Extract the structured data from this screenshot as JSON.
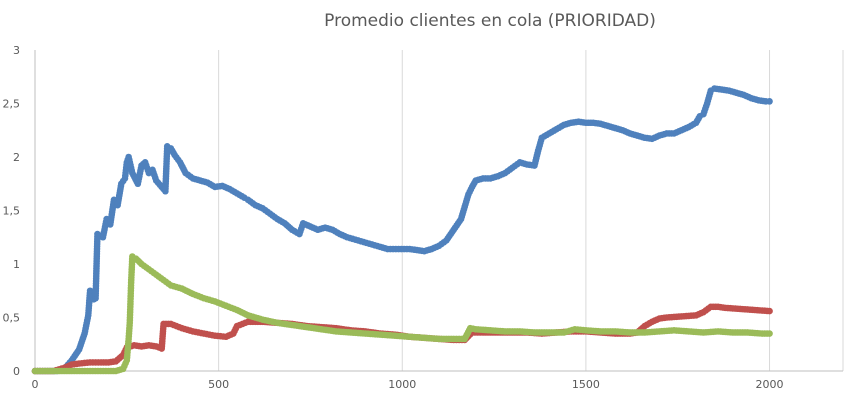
{
  "chart_data": {
    "type": "scatter",
    "title": "Promedio clientes en cola (PRIORIDAD)",
    "xlabel": "",
    "ylabel": "",
    "xlim": [
      0,
      2200
    ],
    "ylim": [
      0,
      3
    ],
    "x_ticks": [
      0,
      500,
      1000,
      1500,
      2000
    ],
    "x_tick_labels": [
      "0",
      "500",
      "1000",
      "1500",
      "2000"
    ],
    "y_ticks": [
      0,
      0.5,
      1,
      1.5,
      2,
      2.5,
      3
    ],
    "y_tick_labels": [
      "0",
      "0,5",
      "1",
      "1,5",
      "2",
      "2,5",
      "3"
    ],
    "grid": "vertical",
    "legend": "none",
    "series": [
      {
        "color": "#4f81bd",
        "points": [
          [
            0,
            0
          ],
          [
            60,
            0
          ],
          [
            80,
            0.02
          ],
          [
            100,
            0.1
          ],
          [
            120,
            0.2
          ],
          [
            135,
            0.35
          ],
          [
            145,
            0.52
          ],
          [
            150,
            0.75
          ],
          [
            160,
            0.67
          ],
          [
            165,
            0.68
          ],
          [
            170,
            1.28
          ],
          [
            185,
            1.25
          ],
          [
            195,
            1.42
          ],
          [
            205,
            1.37
          ],
          [
            215,
            1.6
          ],
          [
            225,
            1.55
          ],
          [
            235,
            1.75
          ],
          [
            245,
            1.8
          ],
          [
            250,
            1.95
          ],
          [
            255,
            2.0
          ],
          [
            265,
            1.85
          ],
          [
            280,
            1.75
          ],
          [
            290,
            1.92
          ],
          [
            300,
            1.95
          ],
          [
            310,
            1.85
          ],
          [
            320,
            1.88
          ],
          [
            330,
            1.78
          ],
          [
            345,
            1.72
          ],
          [
            355,
            1.68
          ],
          [
            360,
            2.1
          ],
          [
            370,
            2.08
          ],
          [
            380,
            2.02
          ],
          [
            395,
            1.95
          ],
          [
            410,
            1.85
          ],
          [
            430,
            1.8
          ],
          [
            450,
            1.78
          ],
          [
            470,
            1.76
          ],
          [
            490,
            1.72
          ],
          [
            510,
            1.73
          ],
          [
            530,
            1.7
          ],
          [
            550,
            1.66
          ],
          [
            570,
            1.62
          ],
          [
            580,
            1.6
          ],
          [
            600,
            1.55
          ],
          [
            620,
            1.52
          ],
          [
            640,
            1.47
          ],
          [
            660,
            1.42
          ],
          [
            680,
            1.38
          ],
          [
            700,
            1.32
          ],
          [
            720,
            1.28
          ],
          [
            730,
            1.38
          ],
          [
            750,
            1.35
          ],
          [
            770,
            1.32
          ],
          [
            790,
            1.34
          ],
          [
            810,
            1.32
          ],
          [
            830,
            1.28
          ],
          [
            850,
            1.25
          ],
          [
            880,
            1.22
          ],
          [
            910,
            1.19
          ],
          [
            940,
            1.16
          ],
          [
            960,
            1.14
          ],
          [
            990,
            1.14
          ],
          [
            1020,
            1.14
          ],
          [
            1040,
            1.13
          ],
          [
            1060,
            1.12
          ],
          [
            1080,
            1.14
          ],
          [
            1100,
            1.17
          ],
          [
            1120,
            1.22
          ],
          [
            1140,
            1.32
          ],
          [
            1160,
            1.42
          ],
          [
            1180,
            1.65
          ],
          [
            1190,
            1.72
          ],
          [
            1200,
            1.78
          ],
          [
            1220,
            1.8
          ],
          [
            1240,
            1.8
          ],
          [
            1260,
            1.82
          ],
          [
            1280,
            1.85
          ],
          [
            1300,
            1.9
          ],
          [
            1320,
            1.95
          ],
          [
            1340,
            1.93
          ],
          [
            1360,
            1.92
          ],
          [
            1370,
            2.06
          ],
          [
            1380,
            2.18
          ],
          [
            1400,
            2.22
          ],
          [
            1420,
            2.26
          ],
          [
            1440,
            2.3
          ],
          [
            1460,
            2.32
          ],
          [
            1480,
            2.33
          ],
          [
            1500,
            2.32
          ],
          [
            1520,
            2.32
          ],
          [
            1540,
            2.31
          ],
          [
            1560,
            2.29
          ],
          [
            1580,
            2.27
          ],
          [
            1600,
            2.25
          ],
          [
            1620,
            2.22
          ],
          [
            1640,
            2.2
          ],
          [
            1660,
            2.18
          ],
          [
            1680,
            2.17
          ],
          [
            1700,
            2.2
          ],
          [
            1720,
            2.22
          ],
          [
            1740,
            2.22
          ],
          [
            1760,
            2.25
          ],
          [
            1780,
            2.28
          ],
          [
            1800,
            2.32
          ],
          [
            1810,
            2.38
          ],
          [
            1820,
            2.4
          ],
          [
            1830,
            2.5
          ],
          [
            1840,
            2.62
          ],
          [
            1850,
            2.64
          ],
          [
            1870,
            2.63
          ],
          [
            1890,
            2.62
          ],
          [
            1910,
            2.6
          ],
          [
            1930,
            2.58
          ],
          [
            1950,
            2.55
          ],
          [
            1970,
            2.53
          ],
          [
            1990,
            2.52
          ],
          [
            2000,
            2.52
          ]
        ]
      },
      {
        "color": "#c0504d",
        "points": [
          [
            0,
            0
          ],
          [
            50,
            0
          ],
          [
            80,
            0.03
          ],
          [
            100,
            0.06
          ],
          [
            120,
            0.07
          ],
          [
            150,
            0.08
          ],
          [
            180,
            0.08
          ],
          [
            200,
            0.08
          ],
          [
            220,
            0.09
          ],
          [
            240,
            0.15
          ],
          [
            250,
            0.22
          ],
          [
            270,
            0.24
          ],
          [
            290,
            0.23
          ],
          [
            310,
            0.24
          ],
          [
            330,
            0.23
          ],
          [
            345,
            0.21
          ],
          [
            350,
            0.44
          ],
          [
            370,
            0.44
          ],
          [
            400,
            0.4
          ],
          [
            430,
            0.37
          ],
          [
            460,
            0.35
          ],
          [
            490,
            0.33
          ],
          [
            520,
            0.32
          ],
          [
            540,
            0.35
          ],
          [
            550,
            0.42
          ],
          [
            580,
            0.46
          ],
          [
            620,
            0.46
          ],
          [
            660,
            0.45
          ],
          [
            700,
            0.44
          ],
          [
            740,
            0.42
          ],
          [
            780,
            0.41
          ],
          [
            820,
            0.4
          ],
          [
            860,
            0.38
          ],
          [
            900,
            0.37
          ],
          [
            940,
            0.35
          ],
          [
            980,
            0.34
          ],
          [
            1020,
            0.32
          ],
          [
            1060,
            0.31
          ],
          [
            1100,
            0.3
          ],
          [
            1140,
            0.29
          ],
          [
            1170,
            0.29
          ],
          [
            1190,
            0.36
          ],
          [
            1220,
            0.36
          ],
          [
            1260,
            0.36
          ],
          [
            1300,
            0.36
          ],
          [
            1340,
            0.36
          ],
          [
            1380,
            0.35
          ],
          [
            1420,
            0.36
          ],
          [
            1460,
            0.37
          ],
          [
            1500,
            0.37
          ],
          [
            1540,
            0.36
          ],
          [
            1580,
            0.35
          ],
          [
            1620,
            0.35
          ],
          [
            1640,
            0.36
          ],
          [
            1660,
            0.42
          ],
          [
            1680,
            0.46
          ],
          [
            1700,
            0.49
          ],
          [
            1720,
            0.5
          ],
          [
            1760,
            0.51
          ],
          [
            1800,
            0.52
          ],
          [
            1820,
            0.55
          ],
          [
            1840,
            0.6
          ],
          [
            1860,
            0.6
          ],
          [
            1880,
            0.59
          ],
          [
            1920,
            0.58
          ],
          [
            1960,
            0.57
          ],
          [
            2000,
            0.56
          ]
        ]
      },
      {
        "color": "#9bbb59",
        "points": [
          [
            0,
            0
          ],
          [
            100,
            0
          ],
          [
            150,
            0
          ],
          [
            200,
            0
          ],
          [
            220,
            0
          ],
          [
            240,
            0.02
          ],
          [
            250,
            0.1
          ],
          [
            255,
            0.3
          ],
          [
            258,
            0.45
          ],
          [
            260,
            0.65
          ],
          [
            262,
            0.85
          ],
          [
            265,
            1.07
          ],
          [
            275,
            1.05
          ],
          [
            290,
            1.0
          ],
          [
            310,
            0.95
          ],
          [
            330,
            0.9
          ],
          [
            350,
            0.85
          ],
          [
            370,
            0.8
          ],
          [
            400,
            0.77
          ],
          [
            430,
            0.72
          ],
          [
            460,
            0.68
          ],
          [
            490,
            0.65
          ],
          [
            520,
            0.61
          ],
          [
            550,
            0.57
          ],
          [
            580,
            0.52
          ],
          [
            620,
            0.48
          ],
          [
            660,
            0.45
          ],
          [
            700,
            0.43
          ],
          [
            740,
            0.41
          ],
          [
            780,
            0.39
          ],
          [
            820,
            0.37
          ],
          [
            860,
            0.36
          ],
          [
            900,
            0.35
          ],
          [
            940,
            0.34
          ],
          [
            980,
            0.33
          ],
          [
            1020,
            0.32
          ],
          [
            1060,
            0.31
          ],
          [
            1100,
            0.3
          ],
          [
            1140,
            0.3
          ],
          [
            1170,
            0.3
          ],
          [
            1185,
            0.4
          ],
          [
            1200,
            0.39
          ],
          [
            1240,
            0.38
          ],
          [
            1280,
            0.37
          ],
          [
            1320,
            0.37
          ],
          [
            1360,
            0.36
          ],
          [
            1400,
            0.36
          ],
          [
            1440,
            0.36
          ],
          [
            1470,
            0.39
          ],
          [
            1500,
            0.38
          ],
          [
            1540,
            0.37
          ],
          [
            1580,
            0.37
          ],
          [
            1620,
            0.36
          ],
          [
            1660,
            0.36
          ],
          [
            1700,
            0.37
          ],
          [
            1740,
            0.38
          ],
          [
            1780,
            0.37
          ],
          [
            1820,
            0.36
          ],
          [
            1860,
            0.37
          ],
          [
            1900,
            0.36
          ],
          [
            1940,
            0.36
          ],
          [
            1980,
            0.35
          ],
          [
            2000,
            0.35
          ]
        ]
      }
    ]
  }
}
